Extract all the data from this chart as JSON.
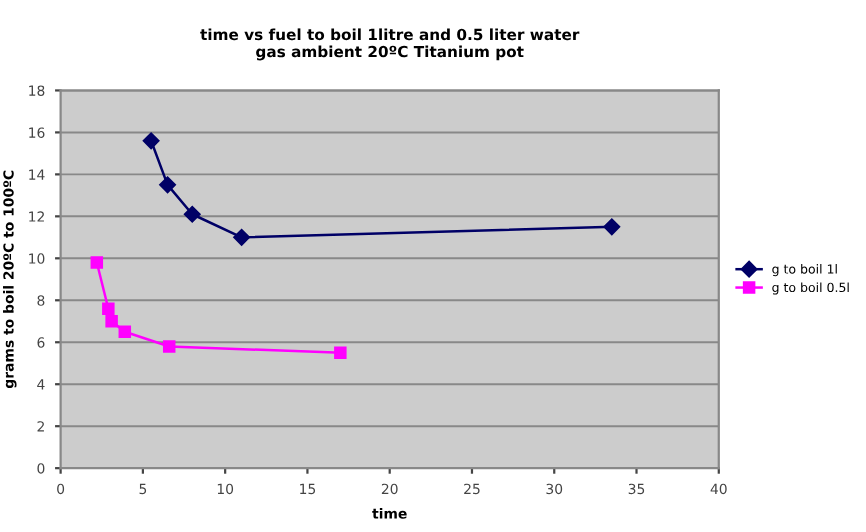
{
  "chart_data": {
    "type": "line",
    "title": "time vs fuel to boil 1litre and 0.5 liter water\ngas ambient 20ºC Titanium pot",
    "xlabel": "time",
    "ylabel": "grams to boil 20ºC to 100ºC",
    "series": [
      {
        "name": "g to boil 1l",
        "color": "#000066",
        "marker": "diamond",
        "x": [
          5.5,
          6.5,
          8,
          11,
          33.5
        ],
        "values": [
          15.6,
          13.5,
          12.1,
          11.0,
          11.5
        ]
      },
      {
        "name": "g to boil 0.5l",
        "color": "#ff00ff",
        "marker": "square",
        "x": [
          2.2,
          2.9,
          3.1,
          3.9,
          6.6,
          17
        ],
        "values": [
          9.8,
          7.6,
          7.0,
          6.5,
          5.8,
          5.5
        ]
      }
    ],
    "xlim": [
      0,
      40
    ],
    "xticks": [
      0,
      5,
      10,
      15,
      20,
      25,
      30,
      35,
      40
    ],
    "ylim": [
      0,
      18
    ],
    "yticks": [
      0,
      2,
      4,
      6,
      8,
      10,
      12,
      14,
      16,
      18
    ],
    "grid": "y",
    "legend": "right",
    "line_style": "solid"
  }
}
